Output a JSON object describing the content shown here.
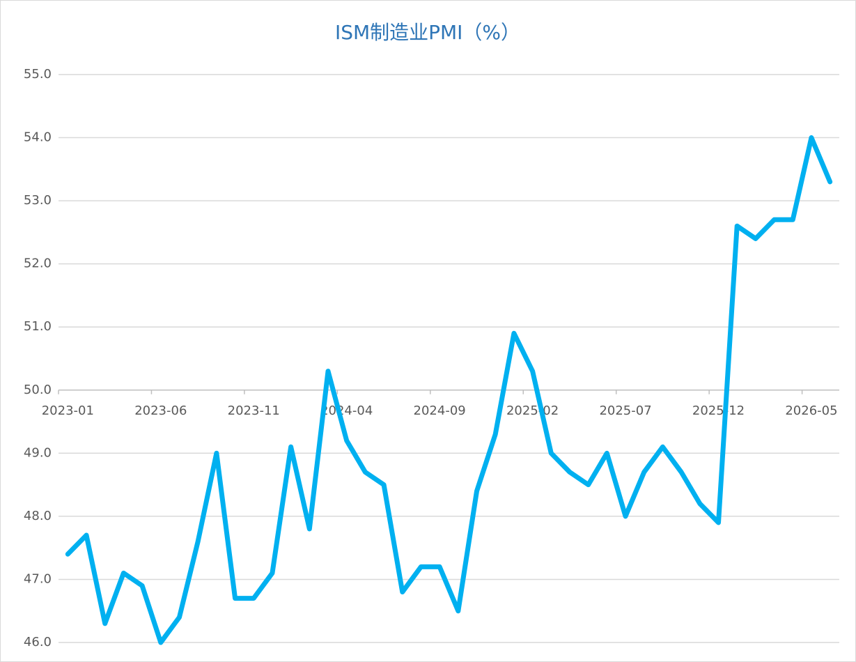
{
  "chart_data": {
    "type": "line",
    "title": "ISM制造业PMI（%）",
    "categories": [
      "2023-01",
      null,
      null,
      null,
      null,
      "2023-06",
      null,
      null,
      null,
      null,
      "2023-11",
      null,
      null,
      null,
      null,
      "2024-04",
      null,
      null,
      null,
      null,
      "2024-09",
      null,
      null,
      null,
      null,
      "2025-02",
      null,
      null,
      null,
      null,
      "2025-07",
      null,
      null,
      null,
      null,
      "2025-12",
      null,
      null,
      null,
      null,
      "2026-05",
      null
    ],
    "series": [
      {
        "name": "ISM制造业PMI",
        "color": "#00b0f0",
        "values": [
          47.4,
          47.7,
          46.3,
          47.1,
          46.9,
          46.0,
          46.4,
          47.6,
          49.0,
          46.7,
          46.7,
          47.1,
          49.1,
          47.8,
          50.3,
          49.2,
          48.7,
          48.5,
          46.8,
          47.2,
          47.2,
          46.5,
          48.4,
          49.3,
          50.9,
          50.3,
          49.0,
          48.7,
          48.5,
          49.0,
          48.0,
          48.7,
          49.1,
          48.7,
          48.2,
          47.9,
          52.6,
          52.4,
          52.7,
          52.7,
          54.0,
          53.3
        ]
      }
    ],
    "ylim": [
      46,
      55
    ],
    "yticks": [
      {
        "value": 46,
        "label": "46.0"
      },
      {
        "value": 47,
        "label": "47.0"
      },
      {
        "value": 48,
        "label": "48.0"
      },
      {
        "value": 49,
        "label": "49.0"
      },
      {
        "value": 50,
        "label": "50.0"
      },
      {
        "value": 51,
        "label": "51.0"
      },
      {
        "value": 52,
        "label": "52.0"
      },
      {
        "value": 53,
        "label": "53.0"
      },
      {
        "value": 54,
        "label": "54.0"
      },
      {
        "value": 55,
        "label": "55.0"
      }
    ],
    "xaxis_crosses": 50,
    "grid": true
  }
}
